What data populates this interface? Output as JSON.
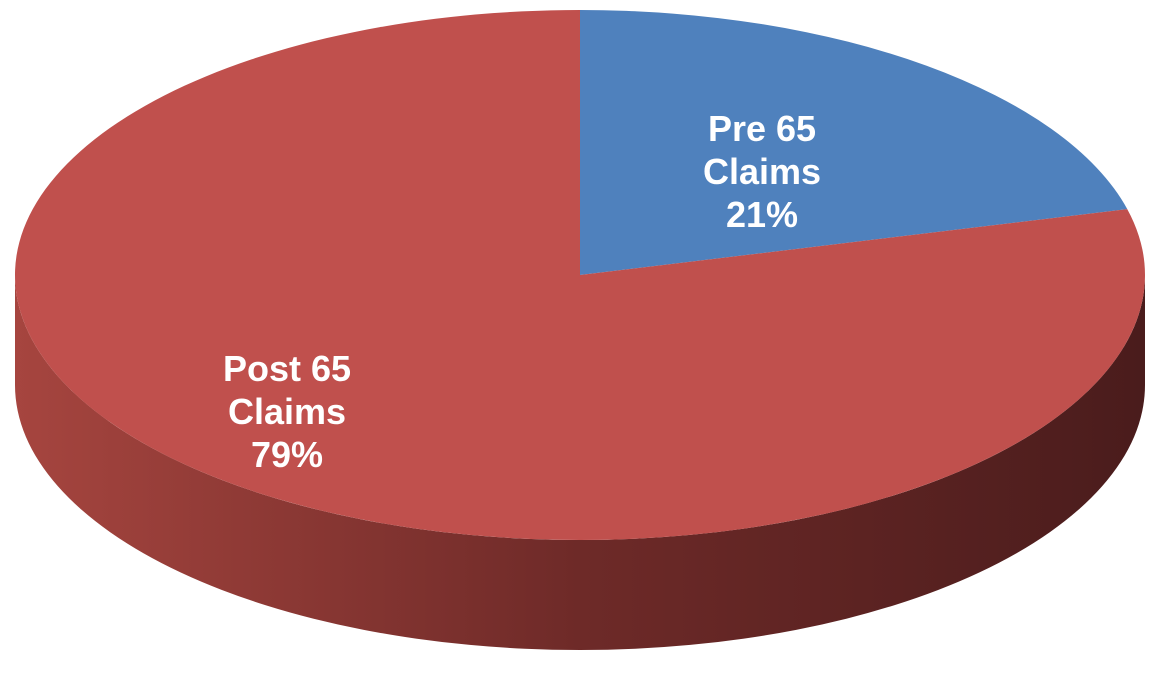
{
  "chart_data": {
    "type": "pie",
    "categories": [
      "Pre 65 Claims",
      "Post 65 Claims"
    ],
    "values": [
      21,
      79
    ],
    "value_labels": [
      "21%",
      "79%"
    ],
    "colors": [
      "#4f81bd",
      "#c0504d"
    ]
  }
}
